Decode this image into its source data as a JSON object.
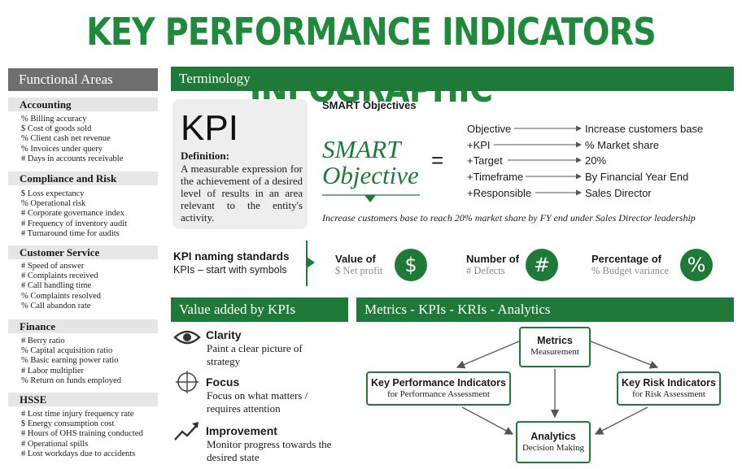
{
  "title": "KEY PERFORMANCE INDICATORS INFOGRAPHIC",
  "functional_areas": {
    "header": "Functional Areas",
    "sections": [
      {
        "title": "Accounting",
        "items": [
          "% Billing accuracy",
          "$ Cost of goods sold",
          "% Client cash net revenue",
          "% Invoices under query",
          "# Days in accounts receivable"
        ]
      },
      {
        "title": "Compliance and Risk",
        "items": [
          "$ Loss expectancy",
          "% Operational risk",
          "# Corporate governance index",
          "# Frequency of inventory audit",
          "# Turnaround time for audits"
        ]
      },
      {
        "title": "Customer Service",
        "items": [
          "# Speed of answer",
          "# Complaints received",
          "# Call handling time",
          "% Complaints resolved",
          "% Call abandon rate"
        ]
      },
      {
        "title": "Finance",
        "items": [
          "# Berry ratio",
          "% Capital acquisition ratio",
          "% Basic earning power ratio",
          "# Labor multiplier",
          "% Return on funds employed"
        ]
      },
      {
        "title": "HSSE",
        "items": [
          "# Lost time injury frequency rate",
          "$ Energy consumption cost",
          "# Hours of OHS training conducted",
          "# Operational spills",
          "# Lost workdays due to accidents"
        ]
      }
    ]
  },
  "terminology": {
    "header": "Terminology",
    "kpi_big": "KPI",
    "definition_label": "Definition:",
    "definition_text": "A measurable expression for the achievement of a desired level of results in an area relevant to the entity's activity.",
    "smart_heading": "SMART Objectives",
    "smart_word1": "SMART",
    "smart_word2": "Objective",
    "equals": "=",
    "smart_rows": [
      {
        "left": "Objective",
        "right": "Increase customers base"
      },
      {
        "left": "+KPI",
        "right": "% Market share"
      },
      {
        "left": "+Target",
        "right": "20%"
      },
      {
        "left": "+Timeframe",
        "right": "By Financial Year End"
      },
      {
        "left": "+Responsible",
        "right": "Sales Director"
      }
    ],
    "smart_example": "Increase customers base to reach 20% market share by FY end under Sales Director leadership",
    "naming_title": "KPI naming standards",
    "naming_sub": "KPIs – start with symbols",
    "symbols": [
      {
        "label": "Value of",
        "sub": "$ Net profit",
        "symbol": "$"
      },
      {
        "label": "Number of",
        "sub": "# Defects",
        "symbol": "#"
      },
      {
        "label": "Percentage of",
        "sub": "% Budget variance",
        "symbol": "%"
      }
    ]
  },
  "value_added": {
    "header": "Value added by KPIs",
    "items": [
      {
        "title": "Clarity",
        "text": "Paint a clear picture of strategy",
        "icon": "eye-icon"
      },
      {
        "title": "Focus",
        "text": "Focus on what matters / requires attention",
        "icon": "crosshair-icon"
      },
      {
        "title": "Improvement",
        "text": "Monitor progress towards the desired state",
        "icon": "trend-up-icon"
      }
    ]
  },
  "metrics": {
    "header": "Metrics - KPIs - KRIs - Analytics",
    "nodes": {
      "metrics": {
        "title": "Metrics",
        "sub": "Measurement"
      },
      "kpi": {
        "title": "Key Performance Indicators",
        "sub": "for Performance Assessment"
      },
      "kri": {
        "title": "Key Risk Indicators",
        "sub": "for Risk Assessment"
      },
      "analytics": {
        "title": "Analytics",
        "sub": "Decision Making"
      }
    }
  },
  "colors": {
    "green": "#1f7a3a",
    "title_green": "#1f8a3b",
    "grey_header": "#6f6f72",
    "section_grey": "#e6e6e6"
  }
}
